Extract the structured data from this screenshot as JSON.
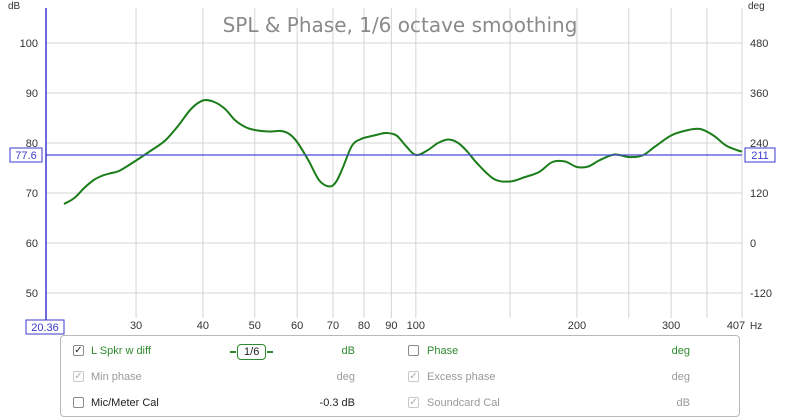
{
  "chart_data": {
    "type": "line",
    "title": "SPL & Phase, 1/6 octave smoothing",
    "left_axis": {
      "label": "dB",
      "ylim": [
        45,
        107
      ],
      "ticks": [
        100,
        90,
        80,
        70,
        60,
        50
      ]
    },
    "right_axis": {
      "label": "deg",
      "ticks": [
        480,
        360,
        240,
        120,
        0,
        -120
      ]
    },
    "x_axis": {
      "unit": "Hz",
      "scale": "log",
      "xlim": [
        20.36,
        407
      ],
      "ticks": [
        30,
        40,
        50,
        60,
        70,
        80,
        90,
        100,
        200,
        300
      ],
      "ticks_unlabeled": [
        150,
        250,
        350
      ],
      "min_label": "20.36",
      "max_label": "407"
    },
    "cursor": {
      "y_db": 77.6,
      "left_label": "77.6",
      "right_label": "211"
    },
    "series": [
      {
        "name": "L Spkr w diff",
        "color": "#1a7d1a",
        "x": [
          22,
          23,
          24,
          25,
          26,
          27,
          28,
          30,
          32,
          34,
          36,
          38,
          40,
          42,
          44,
          46,
          48,
          50,
          53,
          56,
          58,
          60,
          63,
          66,
          69,
          71,
          73,
          76,
          79,
          82,
          85,
          88,
          92,
          96,
          100,
          105,
          110,
          115,
          120,
          125,
          130,
          140,
          150,
          160,
          170,
          180,
          190,
          200,
          210,
          220,
          235,
          250,
          265,
          280,
          300,
          320,
          340,
          360,
          380,
          400,
          407
        ],
        "y": [
          67.8,
          69,
          71,
          72.6,
          73.5,
          74,
          74.5,
          76.5,
          78.5,
          80.5,
          83.5,
          86.8,
          88.5,
          88.2,
          86.8,
          84.5,
          83.2,
          82.6,
          82.3,
          82.4,
          81.8,
          80.2,
          76.5,
          72.5,
          71.3,
          72.3,
          75,
          79.5,
          80.8,
          81.3,
          81.7,
          82,
          81.5,
          79.3,
          77.6,
          78.5,
          80,
          80.7,
          80,
          78.2,
          76,
          72.8,
          72.3,
          73.2,
          74.2,
          76.2,
          76.3,
          75.2,
          75.3,
          76.5,
          77.7,
          77.2,
          77.5,
          79.3,
          81.5,
          82.5,
          82.8,
          81.5,
          79.5,
          78.5,
          78.3
        ]
      }
    ]
  },
  "legend": {
    "rows": [
      {
        "checked": true,
        "enabled": true,
        "label": "L Spkr w diff",
        "unit": "dB",
        "right_checked": false,
        "right_enabled": true,
        "right_label": "Phase",
        "right_unit": "deg"
      },
      {
        "checked": true,
        "enabled": false,
        "label": "Min phase",
        "unit": "deg",
        "right_checked": true,
        "right_enabled": false,
        "right_label": "Excess phase",
        "right_unit": "deg"
      },
      {
        "checked": false,
        "enabled": true,
        "label": "Mic/Meter Cal",
        "unit": "-0.3 dB",
        "right_checked": true,
        "right_enabled": false,
        "right_label": "Soundcard Cal",
        "right_unit": "dB"
      }
    ],
    "smoothing": {
      "num": "1",
      "den": "6"
    }
  },
  "colors": {
    "grid": "#d4d4d4",
    "axis": "#3a3ad0",
    "cursor": "#4a4ad8",
    "trace": "#1a7d1a",
    "title": "#8a8a8a"
  }
}
